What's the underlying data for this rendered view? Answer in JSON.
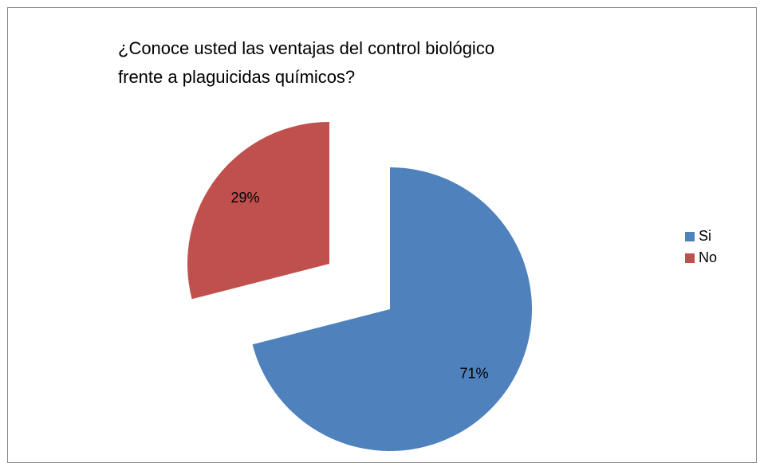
{
  "chart_data": {
    "type": "pie",
    "title": [
      "¿Conoce usted las ventajas del control biológico",
      "frente a plaguicidas químicos?"
    ],
    "categories": [
      "Si",
      "No"
    ],
    "values": [
      71,
      29
    ],
    "value_labels": [
      "71%",
      "29%"
    ],
    "colors": [
      "#4f81bd",
      "#c0504d"
    ],
    "legend": "right"
  }
}
